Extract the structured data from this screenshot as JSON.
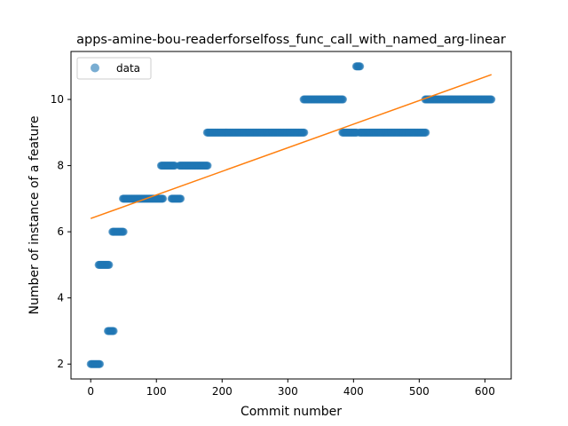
{
  "chart_data": {
    "type": "scatter",
    "title": "apps-amine-bou-readerforselfoss_func_call_with_named_arg-linear",
    "xlabel": "Commit number",
    "ylabel": "Number of instance of a feature",
    "xlim": [
      -30,
      640
    ],
    "ylim": [
      1.55,
      11.45
    ],
    "xticks": [
      0,
      100,
      200,
      300,
      400,
      500,
      600
    ],
    "yticks": [
      2,
      4,
      6,
      8,
      10
    ],
    "legend": {
      "entries": [
        "data"
      ],
      "placement": "upper-left"
    },
    "colors": {
      "data": "#1f77b4",
      "fit": "#ff7f0e"
    },
    "series": [
      {
        "name": "data",
        "kind": "scatter",
        "segments": [
          {
            "x_start": 0,
            "x_end": 14,
            "y": 2
          },
          {
            "x_start": 12,
            "x_end": 28,
            "y": 5
          },
          {
            "x_start": 26,
            "x_end": 35,
            "y": 3
          },
          {
            "x_start": 33,
            "x_end": 50,
            "y": 6
          },
          {
            "x_start": 49,
            "x_end": 110,
            "y": 7
          },
          {
            "x_start": 107,
            "x_end": 128,
            "y": 8
          },
          {
            "x_start": 123,
            "x_end": 137,
            "y": 7
          },
          {
            "x_start": 135,
            "x_end": 178,
            "y": 8
          },
          {
            "x_start": 177,
            "x_end": 325,
            "y": 9
          },
          {
            "x_start": 324,
            "x_end": 384,
            "y": 10
          },
          {
            "x_start": 383,
            "x_end": 405,
            "y": 9
          },
          {
            "x_start": 404,
            "x_end": 410,
            "y": 11
          },
          {
            "x_start": 409,
            "x_end": 510,
            "y": 9
          },
          {
            "x_start": 509,
            "x_end": 610,
            "y": 10
          }
        ]
      },
      {
        "kind": "line",
        "x": [
          0,
          610
        ],
        "y": [
          6.4,
          10.75
        ]
      }
    ]
  }
}
